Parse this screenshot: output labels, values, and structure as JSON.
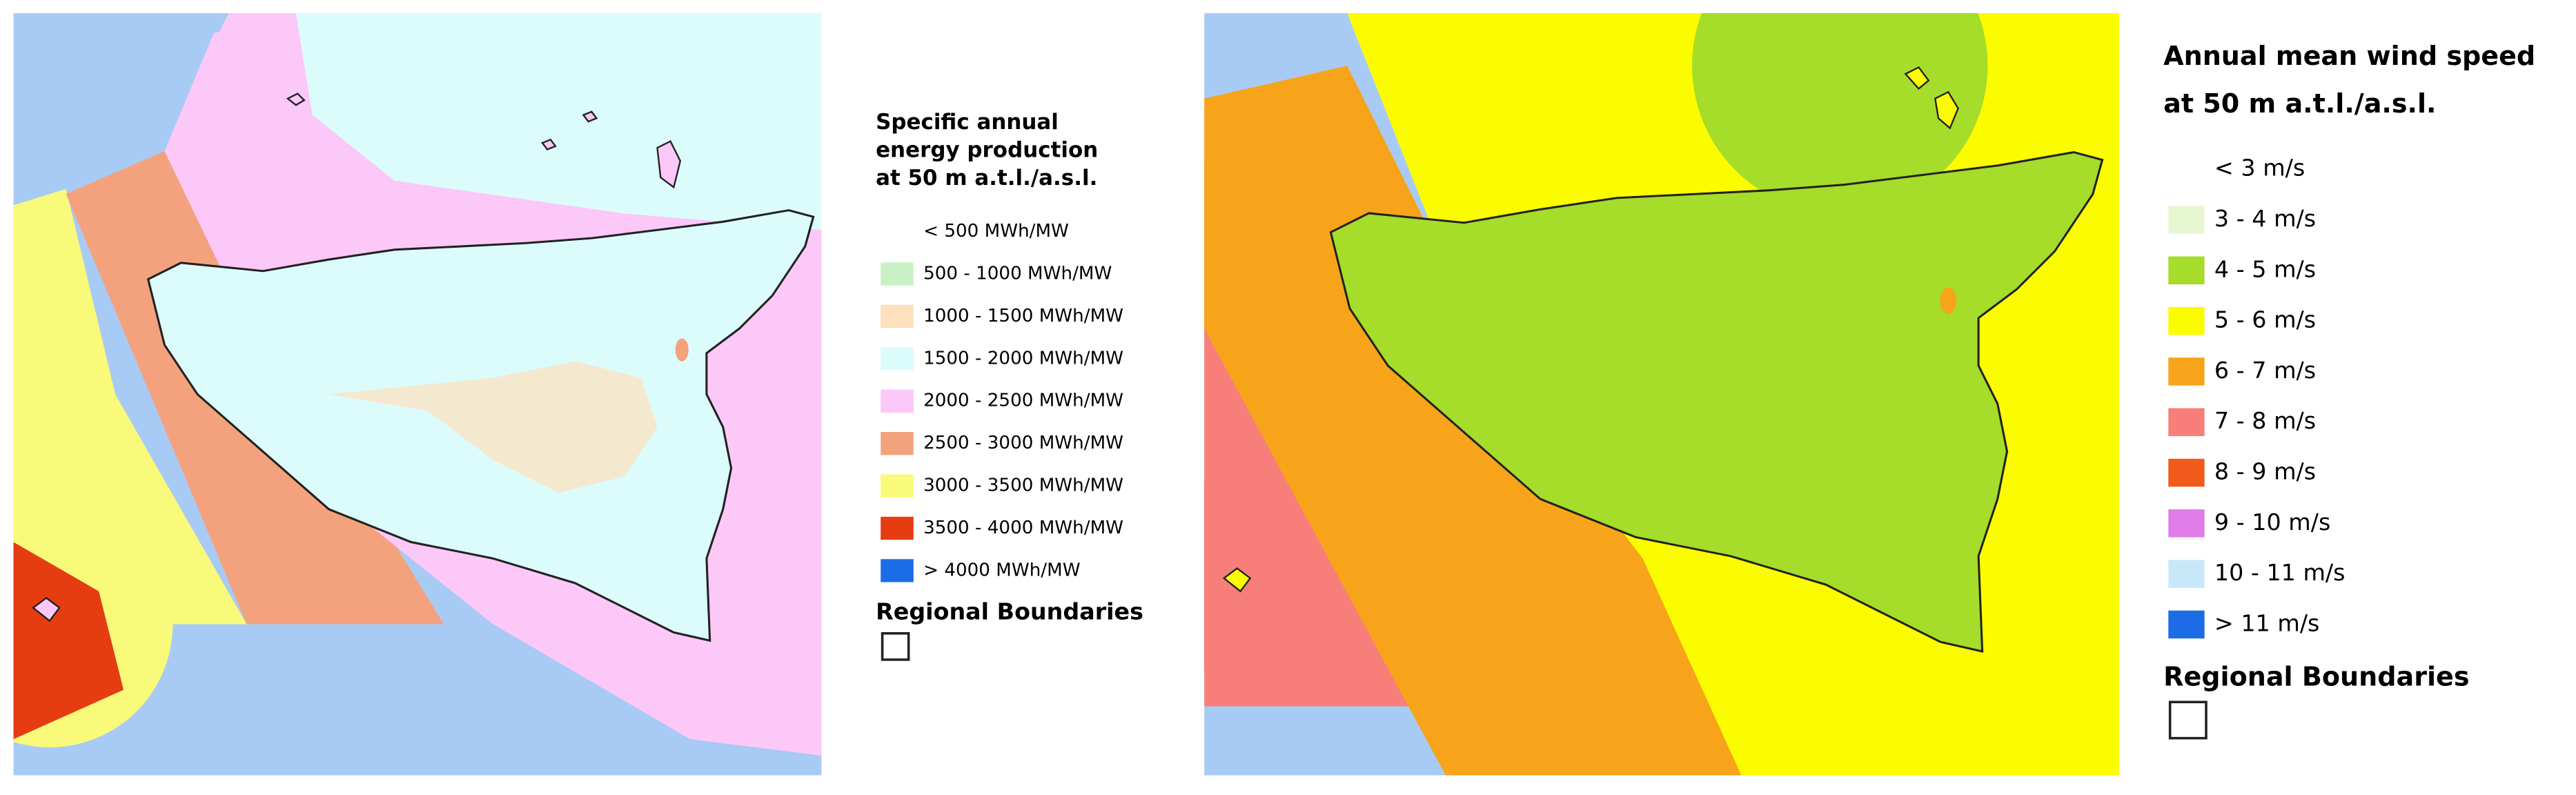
{
  "panels": [
    {
      "legend": {
        "title_lines": [
          "Specific annual",
          "energy production",
          "at 50 m a.t.l./a.s.l."
        ],
        "items": [
          {
            "label": "< 500 MWh/MW"
          },
          {
            "label": "500 - 1000 MWh/MW",
            "color": "#c8f2c4"
          },
          {
            "label": "1000 - 1500 MWh/MW",
            "color": "#fde0bc"
          },
          {
            "label": "1500 - 2000 MWh/MW",
            "color": "#dcfcfc"
          },
          {
            "label": "2000 - 2500 MWh/MW",
            "color": "#fcc8f8"
          },
          {
            "label": "2500 - 3000 MWh/MW",
            "color": "#f4a27e"
          },
          {
            "label": "3000 - 3500 MWh/MW",
            "color": "#fafa7a"
          },
          {
            "label": "3500 - 4000 MWh/MW",
            "color": "#e63c12"
          },
          {
            "label": "> 4000 MWh/MW",
            "color": "#1c6ce8"
          }
        ],
        "boundaries_label": "Regional Boundaries"
      }
    },
    {
      "legend": {
        "title_lines": [
          "Annual mean wind speed",
          "at 50 m a.t.l./a.s.l."
        ],
        "items": [
          {
            "label": "< 3 m/s"
          },
          {
            "label": "3 - 4 m/s",
            "color": "#e6f7d2"
          },
          {
            "label": "4 - 5 m/s",
            "color": "#a6dc2a"
          },
          {
            "label": "5 - 6 m/s",
            "color": "#fcfc00"
          },
          {
            "label": "6 - 7 m/s",
            "color": "#f8a41a"
          },
          {
            "label": "7 - 8 m/s",
            "color": "#f87e7a"
          },
          {
            "label": "8 - 9 m/s",
            "color": "#f05a1a"
          },
          {
            "label": "9 - 10 m/s",
            "color": "#e07ce8"
          },
          {
            "label": "10 - 11 m/s",
            "color": "#c8e8fa"
          },
          {
            "label": "> 11 m/s",
            "color": "#1c6ce8"
          }
        ],
        "boundaries_label": "Regional Boundaries"
      }
    }
  ]
}
